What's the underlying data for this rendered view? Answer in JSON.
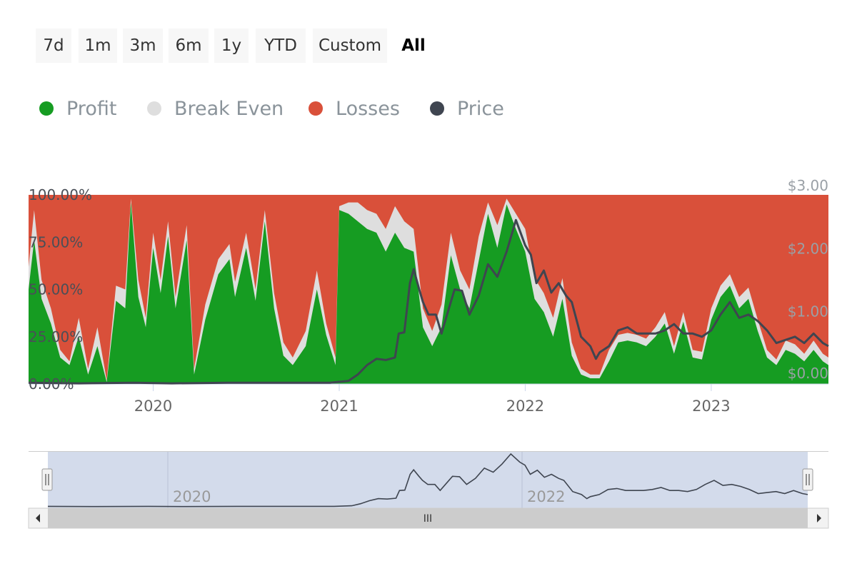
{
  "range_selector": {
    "buttons": [
      "7d",
      "1m",
      "3m",
      "6m",
      "1y",
      "YTD",
      "Custom",
      "All"
    ],
    "selected": "All"
  },
  "colors": {
    "profit": "#169c22",
    "break_even": "#dedede",
    "losses": "#d9503a",
    "price": "#3f4550",
    "navigator_fill": "#d1d9ea"
  },
  "legend": [
    {
      "label": "Profit",
      "color": "#169c22"
    },
    {
      "label": "Break Even",
      "color": "#dedede"
    },
    {
      "label": "Losses",
      "color": "#d9503a"
    },
    {
      "label": "Price",
      "color": "#3f4550"
    }
  ],
  "navigator": {
    "labels": [
      "2020",
      "2022"
    ],
    "scrollbar_grip": "III"
  },
  "chart_data": {
    "type": "area",
    "stacking": "percent",
    "x_start": 2019.33,
    "x_end": 2023.63,
    "x_ticks": [
      2020,
      2021,
      2022,
      2023
    ],
    "x_tick_labels": [
      "2020",
      "2021",
      "2022",
      "2023"
    ],
    "y_left": {
      "range": [
        0,
        100
      ],
      "ticks": [
        0,
        25,
        50,
        75,
        100
      ],
      "tick_labels": [
        "0.00%",
        "25.00%",
        "50.00%",
        "75.00%",
        "100.00%"
      ]
    },
    "y_right": {
      "range": [
        0,
        3
      ],
      "ticks": [
        0,
        1,
        2,
        3
      ],
      "tick_labels": [
        "$0.00",
        "$1.00",
        "$2.00",
        "$3.00"
      ]
    },
    "series": [
      {
        "name": "Profit",
        "type": "area",
        "axis": "left",
        "points": [
          [
            2019.33,
            50
          ],
          [
            2019.36,
            76
          ],
          [
            2019.4,
            45
          ],
          [
            2019.45,
            32
          ],
          [
            2019.5,
            14
          ],
          [
            2019.55,
            10
          ],
          [
            2019.6,
            25
          ],
          [
            2019.65,
            5
          ],
          [
            2019.7,
            20
          ],
          [
            2019.75,
            1
          ],
          [
            2019.8,
            44
          ],
          [
            2019.85,
            40
          ],
          [
            2019.88,
            96
          ],
          [
            2019.92,
            46
          ],
          [
            2019.96,
            30
          ],
          [
            2020.0,
            72
          ],
          [
            2020.04,
            48
          ],
          [
            2020.08,
            78
          ],
          [
            2020.12,
            40
          ],
          [
            2020.18,
            76
          ],
          [
            2020.22,
            5
          ],
          [
            2020.28,
            34
          ],
          [
            2020.35,
            58
          ],
          [
            2020.41,
            66
          ],
          [
            2020.44,
            46
          ],
          [
            2020.5,
            72
          ],
          [
            2020.55,
            44
          ],
          [
            2020.6,
            86
          ],
          [
            2020.65,
            40
          ],
          [
            2020.7,
            15
          ],
          [
            2020.75,
            10
          ],
          [
            2020.82,
            20
          ],
          [
            2020.88,
            50
          ],
          [
            2020.93,
            26
          ],
          [
            2020.98,
            10
          ],
          [
            2021.0,
            92
          ],
          [
            2021.05,
            90
          ],
          [
            2021.1,
            86
          ],
          [
            2021.15,
            82
          ],
          [
            2021.2,
            80
          ],
          [
            2021.25,
            70
          ],
          [
            2021.3,
            80
          ],
          [
            2021.35,
            72
          ],
          [
            2021.4,
            70
          ],
          [
            2021.45,
            30
          ],
          [
            2021.5,
            20
          ],
          [
            2021.55,
            30
          ],
          [
            2021.6,
            68
          ],
          [
            2021.65,
            50
          ],
          [
            2021.7,
            40
          ],
          [
            2021.75,
            65
          ],
          [
            2021.8,
            90
          ],
          [
            2021.85,
            72
          ],
          [
            2021.9,
            95
          ],
          [
            2021.95,
            82
          ],
          [
            2022.0,
            70
          ],
          [
            2022.05,
            45
          ],
          [
            2022.1,
            38
          ],
          [
            2022.15,
            25
          ],
          [
            2022.2,
            45
          ],
          [
            2022.25,
            15
          ],
          [
            2022.3,
            5
          ],
          [
            2022.35,
            3
          ],
          [
            2022.4,
            3
          ],
          [
            2022.45,
            12
          ],
          [
            2022.5,
            22
          ],
          [
            2022.55,
            23
          ],
          [
            2022.6,
            22
          ],
          [
            2022.65,
            20
          ],
          [
            2022.7,
            25
          ],
          [
            2022.75,
            32
          ],
          [
            2022.8,
            16
          ],
          [
            2022.85,
            33
          ],
          [
            2022.9,
            14
          ],
          [
            2022.95,
            13
          ],
          [
            2023.0,
            34
          ],
          [
            2023.05,
            46
          ],
          [
            2023.1,
            52
          ],
          [
            2023.15,
            40
          ],
          [
            2023.2,
            45
          ],
          [
            2023.25,
            28
          ],
          [
            2023.3,
            14
          ],
          [
            2023.35,
            10
          ],
          [
            2023.4,
            18
          ],
          [
            2023.45,
            16
          ],
          [
            2023.5,
            12
          ],
          [
            2023.55,
            18
          ],
          [
            2023.6,
            12
          ],
          [
            2023.63,
            10
          ]
        ]
      },
      {
        "name": "Break Even",
        "type": "area",
        "axis": "left",
        "points": [
          [
            2019.33,
            62
          ],
          [
            2019.36,
            92
          ],
          [
            2019.4,
            55
          ],
          [
            2019.45,
            40
          ],
          [
            2019.5,
            18
          ],
          [
            2019.55,
            12
          ],
          [
            2019.6,
            35
          ],
          [
            2019.65,
            8
          ],
          [
            2019.7,
            30
          ],
          [
            2019.75,
            2
          ],
          [
            2019.8,
            52
          ],
          [
            2019.85,
            50
          ],
          [
            2019.88,
            98
          ],
          [
            2019.92,
            55
          ],
          [
            2019.96,
            35
          ],
          [
            2020.0,
            80
          ],
          [
            2020.04,
            55
          ],
          [
            2020.08,
            86
          ],
          [
            2020.12,
            46
          ],
          [
            2020.18,
            84
          ],
          [
            2020.22,
            8
          ],
          [
            2020.28,
            42
          ],
          [
            2020.35,
            66
          ],
          [
            2020.41,
            74
          ],
          [
            2020.44,
            54
          ],
          [
            2020.5,
            80
          ],
          [
            2020.55,
            50
          ],
          [
            2020.6,
            92
          ],
          [
            2020.65,
            48
          ],
          [
            2020.7,
            22
          ],
          [
            2020.75,
            14
          ],
          [
            2020.82,
            28
          ],
          [
            2020.88,
            60
          ],
          [
            2020.93,
            32
          ],
          [
            2020.98,
            14
          ],
          [
            2021.0,
            94
          ],
          [
            2021.05,
            96
          ],
          [
            2021.1,
            96
          ],
          [
            2021.15,
            92
          ],
          [
            2021.2,
            90
          ],
          [
            2021.25,
            82
          ],
          [
            2021.3,
            94
          ],
          [
            2021.35,
            86
          ],
          [
            2021.4,
            82
          ],
          [
            2021.45,
            40
          ],
          [
            2021.5,
            28
          ],
          [
            2021.55,
            42
          ],
          [
            2021.6,
            80
          ],
          [
            2021.65,
            60
          ],
          [
            2021.7,
            50
          ],
          [
            2021.75,
            78
          ],
          [
            2021.8,
            96
          ],
          [
            2021.85,
            84
          ],
          [
            2021.9,
            98
          ],
          [
            2021.95,
            90
          ],
          [
            2022.0,
            82
          ],
          [
            2022.05,
            56
          ],
          [
            2022.1,
            48
          ],
          [
            2022.15,
            35
          ],
          [
            2022.2,
            56
          ],
          [
            2022.25,
            22
          ],
          [
            2022.3,
            8
          ],
          [
            2022.35,
            5
          ],
          [
            2022.4,
            5
          ],
          [
            2022.45,
            18
          ],
          [
            2022.5,
            26
          ],
          [
            2022.55,
            27
          ],
          [
            2022.6,
            26
          ],
          [
            2022.65,
            24
          ],
          [
            2022.7,
            30
          ],
          [
            2022.75,
            38
          ],
          [
            2022.8,
            20
          ],
          [
            2022.85,
            38
          ],
          [
            2022.9,
            18
          ],
          [
            2022.95,
            17
          ],
          [
            2023.0,
            40
          ],
          [
            2023.05,
            52
          ],
          [
            2023.1,
            58
          ],
          [
            2023.15,
            46
          ],
          [
            2023.2,
            51
          ],
          [
            2023.25,
            34
          ],
          [
            2023.3,
            18
          ],
          [
            2023.35,
            13
          ],
          [
            2023.4,
            23
          ],
          [
            2023.45,
            21
          ],
          [
            2023.5,
            16
          ],
          [
            2023.55,
            23
          ],
          [
            2023.6,
            16
          ],
          [
            2023.63,
            14
          ]
        ]
      },
      {
        "name": "Losses",
        "type": "area",
        "axis": "left",
        "note": "fills remainder to 100%"
      },
      {
        "name": "Price",
        "type": "line",
        "axis": "right",
        "points": [
          [
            2019.33,
            0.02
          ],
          [
            2019.6,
            0.01
          ],
          [
            2019.9,
            0.02
          ],
          [
            2020.1,
            0.01
          ],
          [
            2020.4,
            0.02
          ],
          [
            2020.7,
            0.02
          ],
          [
            2020.95,
            0.02
          ],
          [
            2021.05,
            0.05
          ],
          [
            2021.1,
            0.15
          ],
          [
            2021.15,
            0.3
          ],
          [
            2021.2,
            0.4
          ],
          [
            2021.25,
            0.38
          ],
          [
            2021.3,
            0.42
          ],
          [
            2021.32,
            0.8
          ],
          [
            2021.35,
            0.82
          ],
          [
            2021.38,
            1.6
          ],
          [
            2021.4,
            1.82
          ],
          [
            2021.43,
            1.5
          ],
          [
            2021.45,
            1.3
          ],
          [
            2021.48,
            1.1
          ],
          [
            2021.52,
            1.1
          ],
          [
            2021.55,
            0.8
          ],
          [
            2021.58,
            1.1
          ],
          [
            2021.62,
            1.5
          ],
          [
            2021.66,
            1.48
          ],
          [
            2021.7,
            1.1
          ],
          [
            2021.75,
            1.4
          ],
          [
            2021.8,
            1.9
          ],
          [
            2021.85,
            1.7
          ],
          [
            2021.9,
            2.1
          ],
          [
            2021.95,
            2.6
          ],
          [
            2022.0,
            2.2
          ],
          [
            2022.03,
            2.05
          ],
          [
            2022.06,
            1.6
          ],
          [
            2022.1,
            1.8
          ],
          [
            2022.14,
            1.45
          ],
          [
            2022.18,
            1.6
          ],
          [
            2022.22,
            1.4
          ],
          [
            2022.25,
            1.3
          ],
          [
            2022.3,
            0.75
          ],
          [
            2022.35,
            0.6
          ],
          [
            2022.38,
            0.4
          ],
          [
            2022.4,
            0.5
          ],
          [
            2022.45,
            0.6
          ],
          [
            2022.5,
            0.85
          ],
          [
            2022.55,
            0.9
          ],
          [
            2022.6,
            0.8
          ],
          [
            2022.65,
            0.8
          ],
          [
            2022.7,
            0.8
          ],
          [
            2022.75,
            0.85
          ],
          [
            2022.8,
            0.95
          ],
          [
            2022.85,
            0.8
          ],
          [
            2022.9,
            0.8
          ],
          [
            2022.95,
            0.75
          ],
          [
            2023.0,
            0.85
          ],
          [
            2023.05,
            1.1
          ],
          [
            2023.1,
            1.3
          ],
          [
            2023.15,
            1.05
          ],
          [
            2023.2,
            1.1
          ],
          [
            2023.25,
            1.0
          ],
          [
            2023.3,
            0.85
          ],
          [
            2023.35,
            0.65
          ],
          [
            2023.4,
            0.7
          ],
          [
            2023.45,
            0.75
          ],
          [
            2023.5,
            0.65
          ],
          [
            2023.55,
            0.8
          ],
          [
            2023.6,
            0.65
          ],
          [
            2023.63,
            0.6
          ]
        ]
      }
    ]
  }
}
